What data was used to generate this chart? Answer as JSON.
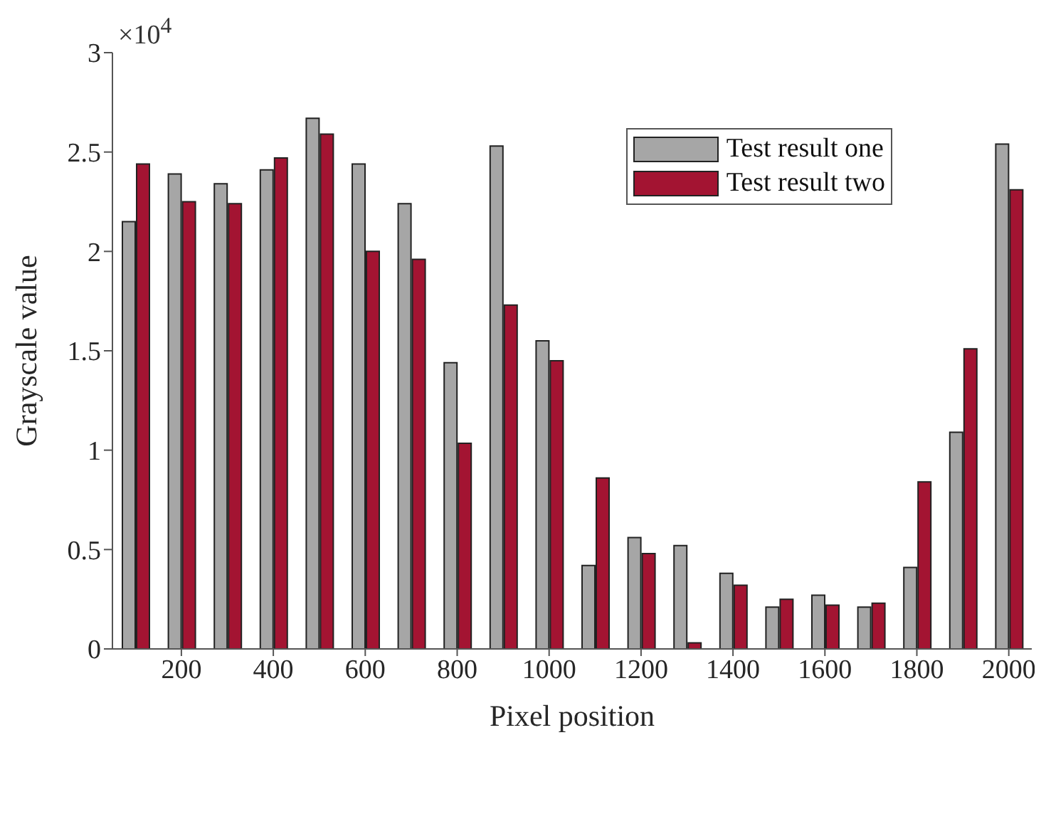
{
  "chart_data": {
    "type": "bar",
    "xlabel": "Pixel position",
    "ylabel": "Grayscale value",
    "annotations": [
      "×10$^{4}$"
    ],
    "x": [
      100,
      200,
      300,
      400,
      500,
      600,
      700,
      800,
      900,
      1000,
      1100,
      1200,
      1300,
      1400,
      1500,
      1600,
      1700,
      1800,
      1900,
      2000
    ],
    "xlim": [
      50,
      2050
    ],
    "xticks": [
      200,
      400,
      600,
      800,
      1000,
      1200,
      1400,
      1600,
      1800,
      2000
    ],
    "ylim": [
      0,
      3
    ],
    "yticks": [
      0,
      0.5,
      1,
      1.5,
      2,
      2.5,
      3
    ],
    "series": [
      {
        "name": "Test result one",
        "color": "#a6a6a6",
        "values": [
          2.15,
          2.39,
          2.34,
          2.41,
          2.67,
          2.44,
          2.24,
          1.44,
          2.53,
          1.55,
          0.42,
          0.56,
          0.52,
          0.38,
          0.21,
          0.27,
          0.21,
          0.41,
          1.09,
          2.54
        ]
      },
      {
        "name": "Test result two",
        "color": "#a31432",
        "values": [
          2.44,
          2.25,
          2.24,
          2.47,
          2.59,
          2.0,
          1.96,
          1.035,
          1.73,
          1.45,
          0.86,
          0.48,
          0.03,
          0.32,
          0.25,
          0.22,
          0.23,
          0.84,
          1.51,
          2.31
        ]
      }
    ],
    "legend": "top right",
    "grid": false
  }
}
